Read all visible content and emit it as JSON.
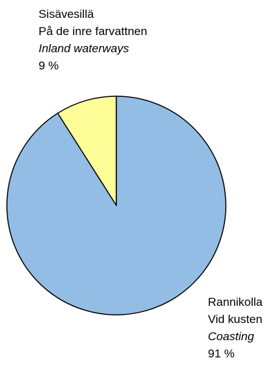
{
  "chart_data": {
    "type": "pie",
    "start_angle_deg": 0,
    "direction": "counterclockwise",
    "slices": [
      {
        "label_fi": "Sisävesillä",
        "label_sv": "På de inre farvattnen",
        "label_en": "Inland waterways",
        "value": 9,
        "value_label": "9 %",
        "color": "#FFFF99"
      },
      {
        "label_fi": "Rannikolla",
        "label_sv": "Vid kusten",
        "label_en": "Coasting",
        "value": 91,
        "value_label": "91 %",
        "color": "#94BDE5"
      }
    ]
  }
}
